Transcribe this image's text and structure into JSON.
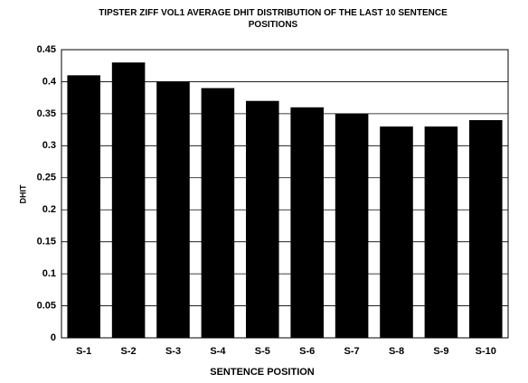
{
  "chart_data": {
    "type": "bar",
    "title": "TIPSTER ZIFF VOL1 AVERAGE DHIT DISTRIBUTION OF THE LAST 10 SENTENCE POSITIONS",
    "x_label": "SENTENCE POSITION",
    "y_label": "DHIT",
    "categories": [
      "S-1",
      "S-2",
      "S-3",
      "S-4",
      "S-5",
      "S-6",
      "S-7",
      "S-8",
      "S-9",
      "S-10"
    ],
    "values": [
      0.41,
      0.43,
      0.4,
      0.39,
      0.37,
      0.36,
      0.35,
      0.33,
      0.33,
      0.34
    ],
    "color": "#000000",
    "ylim": [
      0,
      0.45
    ],
    "yticks": [
      0,
      0.05,
      0.1,
      0.15,
      0.2,
      0.25,
      0.3,
      0.35,
      0.4,
      0.45
    ],
    "grid": true
  }
}
